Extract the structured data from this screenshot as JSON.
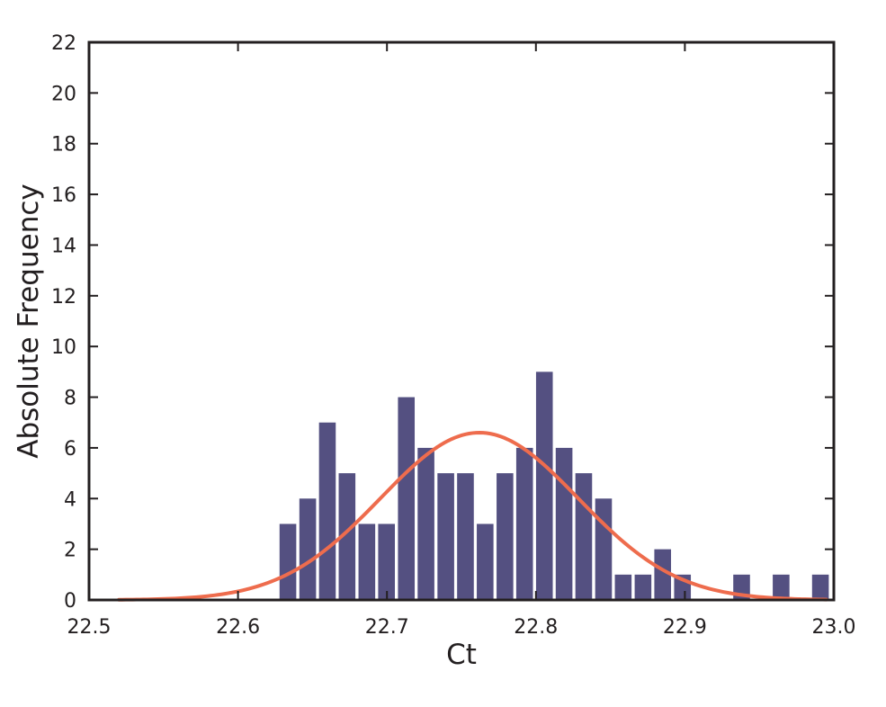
{
  "chart_data": {
    "type": "bar",
    "title": "",
    "xlabel": "Ct",
    "ylabel": "Absolute Frequency",
    "xlim": [
      22.5,
      23.0
    ],
    "ylim": [
      0,
      22
    ],
    "xticks": [
      22.5,
      22.6,
      22.7,
      22.8,
      22.9,
      23.0
    ],
    "xtick_labels": [
      "22.5",
      "22.6",
      "22.7",
      "22.8",
      "22.9",
      "23.0"
    ],
    "yticks": [
      0,
      2,
      4,
      6,
      8,
      10,
      12,
      14,
      16,
      18,
      20,
      22
    ],
    "ytick_labels": [
      "0",
      "2",
      "4",
      "6",
      "8",
      "10",
      "12",
      "14",
      "16",
      "18",
      "20",
      "22"
    ],
    "grid": false,
    "bars": {
      "bin_width": 0.0132,
      "color": "#545081",
      "centers": [
        22.6335,
        22.6468,
        22.66,
        22.6732,
        22.6865,
        22.6997,
        22.713,
        22.7262,
        22.7395,
        22.7527,
        22.7659,
        22.7792,
        22.7924,
        22.8057,
        22.8189,
        22.8321,
        22.8454,
        22.8586,
        22.8719,
        22.8851,
        22.8984,
        22.9116,
        22.9248,
        22.9381,
        22.9513,
        22.9646,
        22.9778,
        22.991
      ],
      "values": [
        3,
        4,
        7,
        5,
        3,
        3,
        8,
        6,
        5,
        5,
        3,
        5,
        6,
        9,
        6,
        5,
        4,
        1,
        1,
        2,
        1,
        0,
        0,
        1,
        0,
        1,
        0,
        1
      ]
    },
    "fit_curve": {
      "type": "normal",
      "color": "#ee6c4d",
      "mean": 22.762,
      "sd": 0.0665,
      "peak": 6.6,
      "x_range": [
        22.52,
        22.995
      ]
    }
  }
}
